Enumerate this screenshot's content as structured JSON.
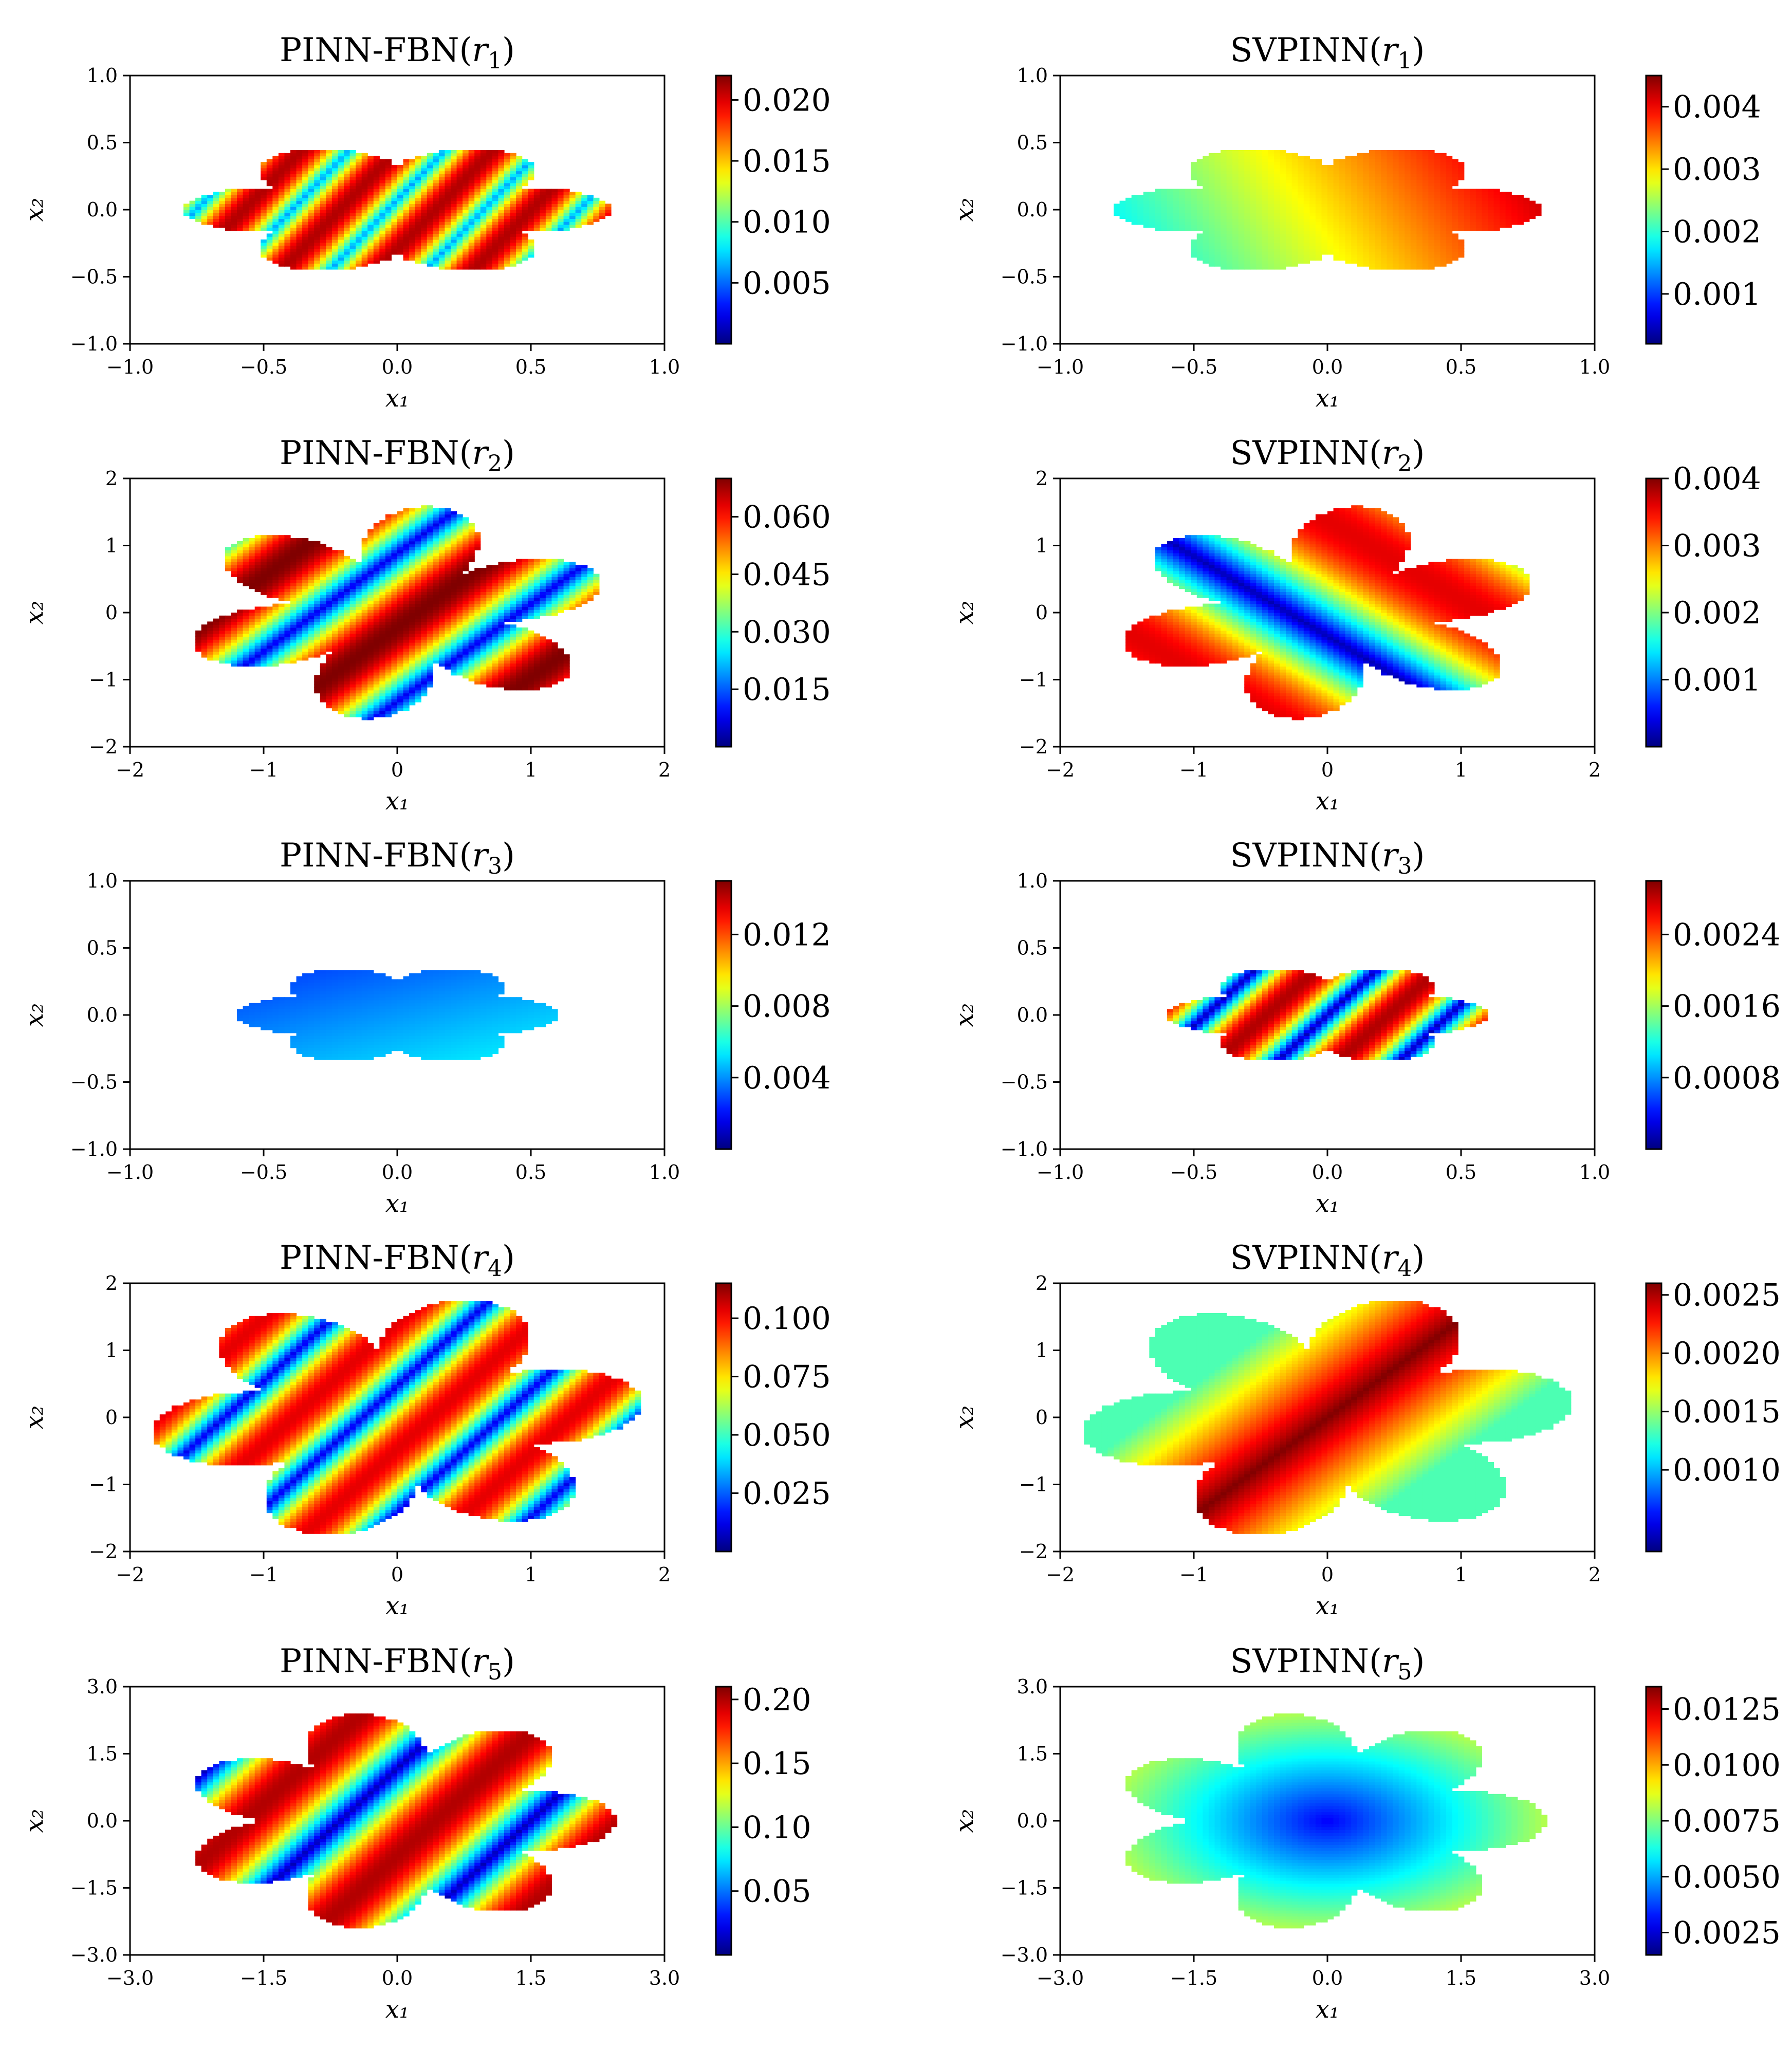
{
  "figure": {
    "layout": "5 rows x 2 columns",
    "colormap": "jet",
    "background": "#ffffff",
    "axis_color": "#000000"
  },
  "chart_data": [
    {
      "type": "heatmap",
      "title": "PINN-FBN(r₁)",
      "title_base": "PINN-FBN(",
      "title_var": "r",
      "title_sub": "1",
      "title_end": ")",
      "xlabel": "x₁",
      "ylabel": "x₂",
      "xlim": [
        -1,
        1
      ],
      "ylim": [
        -1,
        1
      ],
      "xticks": [
        -1,
        -0.5,
        0,
        0.5,
        1
      ],
      "xtick_labels": [
        "−1.0",
        "−0.5",
        "0.0",
        "0.5",
        "1.0"
      ],
      "yticks": [
        -1,
        -0.5,
        0,
        0.5,
        1
      ],
      "ytick_labels": [
        "−1.0",
        "−0.5",
        "0.0",
        "0.5",
        "1.0"
      ],
      "colorbar": {
        "min": 0.0,
        "max": 0.022,
        "ticks": [
          0.005,
          0.01,
          0.015,
          0.02
        ],
        "tick_labels": [
          "0.005",
          "0.010",
          "0.015",
          "0.020"
        ]
      },
      "shape": {
        "arms": 6,
        "radius": 0.8,
        "arm_amp": 0.35,
        "rot": 0.0,
        "aspect": 1.6
      },
      "field": {
        "mode": "bands",
        "angle": -0.45,
        "freq": 3.1,
        "phase": 0.1,
        "lo": 0.28,
        "hi": 0.95
      }
    },
    {
      "type": "heatmap",
      "title": "SVPINN(r₁)",
      "title_base": "SVPINN(",
      "title_var": "r",
      "title_sub": "1",
      "title_end": ")",
      "xlabel": "x₁",
      "ylabel": "x₂",
      "xlim": [
        -1,
        1
      ],
      "ylim": [
        -1,
        1
      ],
      "xticks": [
        -1,
        -0.5,
        0,
        0.5,
        1
      ],
      "xtick_labels": [
        "−1.0",
        "−0.5",
        "0.0",
        "0.5",
        "1.0"
      ],
      "yticks": [
        -1,
        -0.5,
        0,
        0.5,
        1
      ],
      "ytick_labels": [
        "−1.0",
        "−0.5",
        "0.0",
        "0.5",
        "1.0"
      ],
      "colorbar": {
        "min": 0.0002,
        "max": 0.0045,
        "ticks": [
          0.001,
          0.002,
          0.003,
          0.004
        ],
        "tick_labels": [
          "0.001",
          "0.002",
          "0.003",
          "0.004"
        ]
      },
      "shape": {
        "arms": 6,
        "radius": 0.8,
        "arm_amp": 0.35,
        "rot": 0.0,
        "aspect": 1.6
      },
      "field": {
        "mode": "ramp",
        "angle": 0.35,
        "freq": 0,
        "phase": 0,
        "lo": 0.3,
        "hi": 1.0
      }
    },
    {
      "type": "heatmap",
      "title": "PINN-FBN(r₂)",
      "title_base": "PINN-FBN(",
      "title_var": "r",
      "title_sub": "2",
      "title_end": ")",
      "xlabel": "x₁",
      "ylabel": "x₂",
      "xlim": [
        -2,
        2
      ],
      "ylim": [
        -2,
        2
      ],
      "xticks": [
        -2,
        -1,
        0,
        1,
        2
      ],
      "xtick_labels": [
        "−2",
        "−1",
        "0",
        "1",
        "2"
      ],
      "yticks": [
        -2,
        -1,
        0,
        1,
        2
      ],
      "ytick_labels": [
        "−2",
        "−1",
        "0",
        "1",
        "2"
      ],
      "colorbar": {
        "min": 0.0,
        "max": 0.07,
        "ticks": [
          0.015,
          0.03,
          0.045,
          0.06
        ],
        "tick_labels": [
          "0.015",
          "0.030",
          "0.045",
          "0.060"
        ]
      },
      "shape": {
        "arms": 6,
        "radius": 1.6,
        "arm_amp": 0.55,
        "rot": 0.35,
        "aspect": 1.0
      },
      "field": {
        "mode": "bands",
        "angle": -0.6,
        "freq": 1.6,
        "phase": 0.4,
        "lo": 0.1,
        "hi": 1.0
      }
    },
    {
      "type": "heatmap",
      "title": "SVPINN(r₂)",
      "title_base": "SVPINN(",
      "title_var": "r",
      "title_sub": "2",
      "title_end": ")",
      "xlabel": "x₁",
      "ylabel": "x₂",
      "xlim": [
        -2,
        2
      ],
      "ylim": [
        -2,
        2
      ],
      "xticks": [
        -2,
        -1,
        0,
        1,
        2
      ],
      "xtick_labels": [
        "−2",
        "−1",
        "0",
        "1",
        "2"
      ],
      "yticks": [
        -2,
        -1,
        0,
        1,
        2
      ],
      "ytick_labels": [
        "−2",
        "−1",
        "0",
        "1",
        "2"
      ],
      "colorbar": {
        "min": 0.0,
        "max": 0.004,
        "ticks": [
          0.001,
          0.002,
          0.003,
          0.004
        ],
        "tick_labels": [
          "0.001",
          "0.002",
          "0.003",
          "0.004"
        ]
      },
      "shape": {
        "arms": 6,
        "radius": 1.6,
        "arm_amp": 0.55,
        "rot": 0.35,
        "aspect": 1.0
      },
      "field": {
        "mode": "bands",
        "angle": 0.7,
        "freq": 0.9,
        "phase": 0.1,
        "lo": 0.05,
        "hi": 0.9
      }
    },
    {
      "type": "heatmap",
      "title": "PINN-FBN(r₃)",
      "title_base": "PINN-FBN(",
      "title_var": "r",
      "title_sub": "3",
      "title_end": ")",
      "xlabel": "x₁",
      "ylabel": "x₂",
      "xlim": [
        -1,
        1
      ],
      "ylim": [
        -1,
        1
      ],
      "xticks": [
        -1,
        -0.5,
        0,
        0.5,
        1
      ],
      "xtick_labels": [
        "−1.0",
        "−0.5",
        "0.0",
        "0.5",
        "1.0"
      ],
      "yticks": [
        -1,
        -0.5,
        0,
        0.5,
        1
      ],
      "ytick_labels": [
        "−1.0",
        "−0.5",
        "0.0",
        "0.5",
        "1.0"
      ],
      "colorbar": {
        "min": 0.0,
        "max": 0.015,
        "ticks": [
          0.004,
          0.008,
          0.012
        ],
        "tick_labels": [
          "0.004",
          "0.008",
          "0.012"
        ]
      },
      "shape": {
        "arms": 6,
        "radius": 0.6,
        "arm_amp": 0.3,
        "rot": 0.0,
        "aspect": 1.6
      },
      "field": {
        "mode": "ramp",
        "angle": -1.1,
        "freq": 0,
        "phase": 0,
        "lo": 0.1,
        "hi": 0.45
      }
    },
    {
      "type": "heatmap",
      "title": "SVPINN(r₃)",
      "title_base": "SVPINN(",
      "title_var": "r",
      "title_sub": "3",
      "title_end": ")",
      "xlabel": "x₁",
      "ylabel": "x₂",
      "xlim": [
        -1,
        1
      ],
      "ylim": [
        -1,
        1
      ],
      "xticks": [
        -1,
        -0.5,
        0,
        0.5,
        1
      ],
      "xtick_labels": [
        "−1.0",
        "−0.5",
        "0.0",
        "0.5",
        "1.0"
      ],
      "yticks": [
        -1,
        -0.5,
        0,
        0.5,
        1
      ],
      "ytick_labels": [
        "−1.0",
        "−0.5",
        "0.0",
        "0.5",
        "1.0"
      ],
      "colorbar": {
        "min": 0.0,
        "max": 0.003,
        "ticks": [
          0.0008,
          0.0016,
          0.0024
        ],
        "tick_labels": [
          "0.0008",
          "0.0016",
          "0.0024"
        ]
      },
      "shape": {
        "arms": 6,
        "radius": 0.6,
        "arm_amp": 0.3,
        "rot": 0.0,
        "aspect": 1.6
      },
      "field": {
        "mode": "bands",
        "angle": -0.5,
        "freq": 2.5,
        "phase": 0.0,
        "lo": 0.05,
        "hi": 0.95
      }
    },
    {
      "type": "heatmap",
      "title": "PINN-FBN(r₄)",
      "title_base": "PINN-FBN(",
      "title_var": "r",
      "title_sub": "4",
      "title_end": ")",
      "xlabel": "x₁",
      "ylabel": "x₂",
      "xlim": [
        -2,
        2
      ],
      "ylim": [
        -2,
        2
      ],
      "xticks": [
        -2,
        -1,
        0,
        1,
        2
      ],
      "xtick_labels": [
        "−2",
        "−1",
        "0",
        "1",
        "2"
      ],
      "yticks": [
        -2,
        -1,
        0,
        1,
        2
      ],
      "ytick_labels": [
        "−2",
        "−1",
        "0",
        "1",
        "2"
      ],
      "colorbar": {
        "min": 0.0,
        "max": 0.115,
        "ticks": [
          0.025,
          0.05,
          0.075,
          0.1
        ],
        "tick_labels": [
          "0.025",
          "0.050",
          "0.075",
          "0.100"
        ]
      },
      "shape": {
        "arms": 6,
        "radius": 1.85,
        "arm_amp": 0.45,
        "rot": 0.15,
        "aspect": 1.0
      },
      "field": {
        "mode": "bands",
        "angle": -0.5,
        "freq": 2.2,
        "phase": 0.25,
        "lo": 0.1,
        "hi": 0.9
      }
    },
    {
      "type": "heatmap",
      "title": "SVPINN(r₄)",
      "title_base": "SVPINN(",
      "title_var": "r",
      "title_sub": "4",
      "title_end": ")",
      "xlabel": "x₁",
      "ylabel": "x₂",
      "xlim": [
        -2,
        2
      ],
      "ylim": [
        -2,
        2
      ],
      "xticks": [
        -2,
        -1,
        0,
        1,
        2
      ],
      "xtick_labels": [
        "−2",
        "−1",
        "0",
        "1",
        "2"
      ],
      "yticks": [
        -2,
        -1,
        0,
        1,
        2
      ],
      "ytick_labels": [
        "−2",
        "−1",
        "0",
        "1",
        "2"
      ],
      "colorbar": {
        "min": 0.0003,
        "max": 0.0026,
        "ticks": [
          0.001,
          0.0015,
          0.002,
          0.0025
        ],
        "tick_labels": [
          "0.0010",
          "0.0015",
          "0.0020",
          "0.0025"
        ]
      },
      "shape": {
        "arms": 6,
        "radius": 1.85,
        "arm_amp": 0.45,
        "rot": 0.15,
        "aspect": 1.0
      },
      "field": {
        "mode": "ridge",
        "angle": -0.6,
        "freq": 0.55,
        "phase": 0,
        "lo": 0.45,
        "hi": 1.0
      }
    },
    {
      "type": "heatmap",
      "title": "PINN-FBN(r₅)",
      "title_base": "PINN-FBN(",
      "title_var": "r",
      "title_sub": "5",
      "title_end": ")",
      "xlabel": "x₁",
      "ylabel": "x₂",
      "xlim": [
        -3,
        3
      ],
      "ylim": [
        -3,
        3
      ],
      "xticks": [
        -3,
        -1.5,
        0,
        1.5,
        3
      ],
      "xtick_labels": [
        "−3.0",
        "−1.5",
        "0.0",
        "1.5",
        "3.0"
      ],
      "yticks": [
        -3,
        -1.5,
        0,
        1.5,
        3
      ],
      "ytick_labels": [
        "−3.0",
        "−1.5",
        "0.0",
        "1.5",
        "3.0"
      ],
      "colorbar": {
        "min": 0.0,
        "max": 0.21,
        "ticks": [
          0.05,
          0.1,
          0.15,
          0.2
        ],
        "tick_labels": [
          "0.05",
          "0.10",
          "0.15",
          "0.20"
        ]
      },
      "shape": {
        "arms": 7,
        "radius": 2.45,
        "arm_amp": 0.4,
        "rot": 0.0,
        "aspect": 1.0
      },
      "field": {
        "mode": "bands",
        "angle": -0.5,
        "freq": 1.6,
        "phase": 0.3,
        "lo": 0.05,
        "hi": 0.95
      }
    },
    {
      "type": "heatmap",
      "title": "SVPINN(r₅)",
      "title_base": "SVPINN(",
      "title_var": "r",
      "title_sub": "5",
      "title_end": ")",
      "xlabel": "x₁",
      "ylabel": "x₂",
      "xlim": [
        -3,
        3
      ],
      "ylim": [
        -3,
        3
      ],
      "xticks": [
        -3,
        -1.5,
        0,
        1.5,
        3
      ],
      "xtick_labels": [
        "−3.0",
        "−1.5",
        "0.0",
        "1.5",
        "3.0"
      ],
      "yticks": [
        -3,
        -1.5,
        0,
        1.5,
        3
      ],
      "ytick_labels": [
        "−3.0",
        "−1.5",
        "0.0",
        "1.5",
        "3.0"
      ],
      "colorbar": {
        "min": 0.0015,
        "max": 0.0135,
        "ticks": [
          0.0025,
          0.005,
          0.0075,
          0.01,
          0.0125
        ],
        "tick_labels": [
          "0.0025",
          "0.0050",
          "0.0075",
          "0.0100",
          "0.0125"
        ]
      },
      "shape": {
        "arms": 7,
        "radius": 2.45,
        "arm_amp": 0.4,
        "rot": 0.0,
        "aspect": 1.0
      },
      "field": {
        "mode": "radial",
        "angle": 0.0,
        "freq": 0,
        "phase": 0,
        "lo": 0.12,
        "hi": 0.55
      }
    }
  ]
}
